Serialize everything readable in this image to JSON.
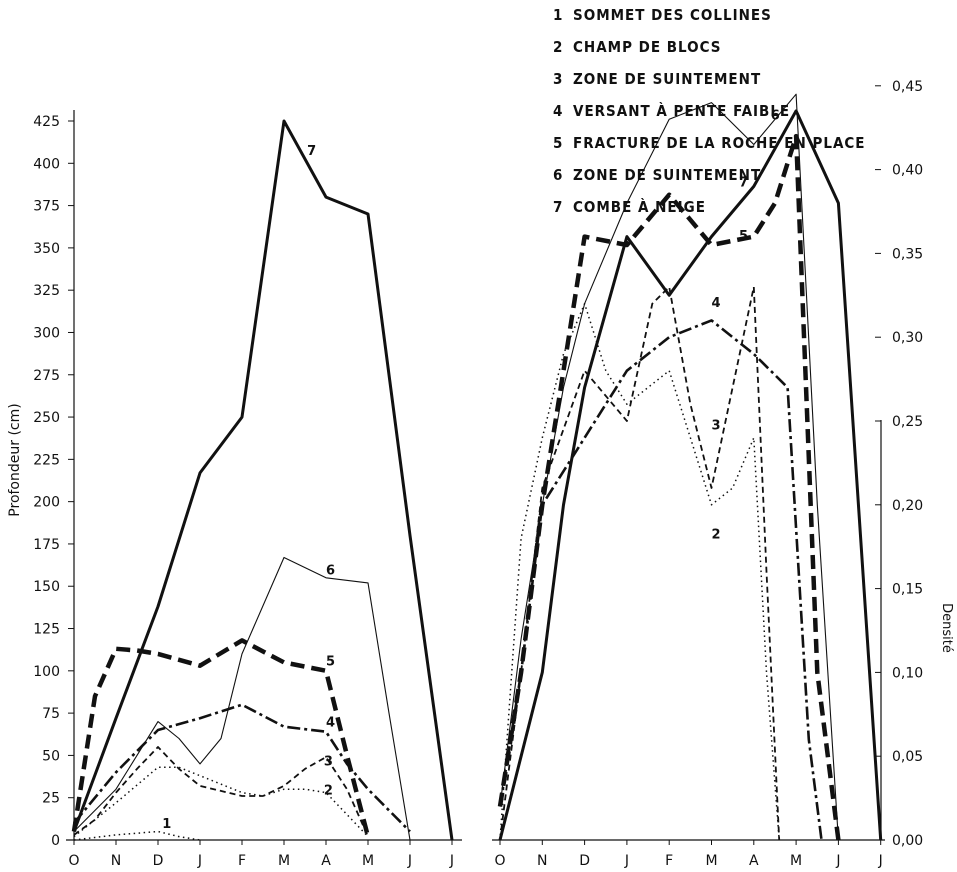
{
  "legend": [
    {
      "num": "1",
      "label": "SOMMET DES COLLINES"
    },
    {
      "num": "2",
      "label": "CHAMP DE BLOCS"
    },
    {
      "num": "3",
      "label": "ZONE DE SUINTEMENT"
    },
    {
      "num": "4",
      "label": "VERSANT À PENTE FAIBLE"
    },
    {
      "num": "5",
      "label": "FRACTURE DE LA ROCHE EN PLACE"
    },
    {
      "num": "6",
      "label": "ZONE DE SUINTEMENT"
    },
    {
      "num": "7",
      "label": "COMBE À NEIGE"
    }
  ],
  "chart_data": [
    {
      "type": "line",
      "ylabel": "Profondeur (cm)",
      "ylim": [
        0,
        425
      ],
      "yticks": [
        0,
        25,
        50,
        75,
        100,
        125,
        150,
        175,
        200,
        225,
        250,
        275,
        300,
        325,
        350,
        375,
        400,
        425
      ],
      "x_ticks": [
        "O",
        "N",
        "D",
        "J",
        "F",
        "M",
        "A",
        "M",
        "J",
        "J"
      ],
      "grid": false,
      "series": [
        {
          "name": "1",
          "style": "dotted",
          "points": [
            [
              0,
              0
            ],
            [
              1,
              3
            ],
            [
              2,
              5
            ],
            [
              2.5,
              2
            ],
            [
              3,
              0
            ]
          ]
        },
        {
          "name": "2",
          "style": "dotted",
          "points": [
            [
              0,
              2
            ],
            [
              1,
              22
            ],
            [
              2,
              43
            ],
            [
              2.5,
              43
            ],
            [
              3,
              38
            ],
            [
              4,
              28
            ],
            [
              4.5,
              26
            ],
            [
              5,
              30
            ],
            [
              5.5,
              30
            ],
            [
              6,
              28
            ],
            [
              6.5,
              15
            ],
            [
              7,
              2
            ]
          ]
        },
        {
          "name": "3",
          "style": "dashed",
          "points": [
            [
              0,
              3
            ],
            [
              0.5,
              12
            ],
            [
              1,
              28
            ],
            [
              1.5,
              42
            ],
            [
              2,
              55
            ],
            [
              2.5,
              42
            ],
            [
              3,
              32
            ],
            [
              4,
              26
            ],
            [
              4.5,
              26
            ],
            [
              5,
              32
            ],
            [
              5.5,
              42
            ],
            [
              6,
              49
            ],
            [
              6.5,
              30
            ],
            [
              7,
              2
            ]
          ]
        },
        {
          "name": "4",
          "style": "dashdot",
          "points": [
            [
              0,
              10
            ],
            [
              1,
              40
            ],
            [
              2,
              65
            ],
            [
              3,
              72
            ],
            [
              4,
              80
            ],
            [
              5,
              67
            ],
            [
              6,
              64
            ],
            [
              6.5,
              45
            ],
            [
              7,
              30
            ],
            [
              8,
              5
            ]
          ]
        },
        {
          "name": "5",
          "style": "heavy-dashed",
          "points": [
            [
              0,
              5
            ],
            [
              0.5,
              85
            ],
            [
              1,
              113
            ],
            [
              1.5,
              112
            ],
            [
              2,
              110
            ],
            [
              3,
              103
            ],
            [
              4,
              118
            ],
            [
              5,
              105
            ],
            [
              6,
              100
            ],
            [
              6.5,
              50
            ],
            [
              7,
              2
            ]
          ]
        },
        {
          "name": "6",
          "style": "thin",
          "points": [
            [
              0,
              5
            ],
            [
              1,
              30
            ],
            [
              2,
              70
            ],
            [
              2.5,
              60
            ],
            [
              3,
              45
            ],
            [
              3.5,
              60
            ],
            [
              4,
              110
            ],
            [
              5,
              167
            ],
            [
              6,
              155
            ],
            [
              7,
              152
            ],
            [
              7.5,
              75
            ],
            [
              8,
              0
            ]
          ]
        },
        {
          "name": "7",
          "style": "bold",
          "points": [
            [
              0,
              5
            ],
            [
              1,
              72
            ],
            [
              2,
              138
            ],
            [
              3,
              217
            ],
            [
              4,
              250
            ],
            [
              5,
              425
            ],
            [
              6,
              380
            ],
            [
              7,
              370
            ],
            [
              8,
              180
            ],
            [
              9,
              0
            ]
          ]
        }
      ],
      "series_labels": [
        {
          "text": "7",
          "x": 5.55,
          "y": 405
        },
        {
          "text": "6",
          "x": 6.0,
          "y": 157
        },
        {
          "text": "5",
          "x": 6.0,
          "y": 103
        },
        {
          "text": "4",
          "x": 6.0,
          "y": 67
        },
        {
          "text": "3",
          "x": 5.95,
          "y": 44
        },
        {
          "text": "2",
          "x": 5.95,
          "y": 27
        },
        {
          "text": "1",
          "x": 2.1,
          "y": 7
        }
      ]
    },
    {
      "type": "line",
      "ylabel": "Densité",
      "ylim": [
        0,
        0.5
      ],
      "yticks": [
        "0,00",
        "0,05",
        "0,10",
        "0,15",
        "0,20",
        "0,25",
        "0,30",
        "0,35",
        "0,40",
        "0,45"
      ],
      "x_ticks": [
        "O",
        "N",
        "D",
        "J",
        "F",
        "M",
        "A",
        "M",
        "J",
        "J"
      ],
      "grid": false,
      "series": [
        {
          "name": "2",
          "style": "dotted",
          "points": [
            [
              0,
              0
            ],
            [
              0.5,
              0.18
            ],
            [
              1,
              0.24
            ],
            [
              1.5,
              0.29
            ],
            [
              2,
              0.32
            ],
            [
              2.5,
              0.28
            ],
            [
              3,
              0.26
            ],
            [
              3.5,
              0.27
            ],
            [
              4,
              0.28
            ],
            [
              4.5,
              0.24
            ],
            [
              5,
              0.2
            ],
            [
              5.5,
              0.21
            ],
            [
              6,
              0.24
            ],
            [
              6.3,
              0.1
            ],
            [
              6.6,
              0
            ]
          ]
        },
        {
          "name": "3",
          "style": "dashed",
          "points": [
            [
              0,
              0
            ],
            [
              0.5,
              0.1
            ],
            [
              1,
              0.21
            ],
            [
              2,
              0.28
            ],
            [
              3,
              0.25
            ],
            [
              3.6,
              0.32
            ],
            [
              4.0,
              0.33
            ],
            [
              4.5,
              0.26
            ],
            [
              5,
              0.21
            ],
            [
              5.5,
              0.27
            ],
            [
              6,
              0.33
            ],
            [
              6.3,
              0.16
            ],
            [
              6.6,
              0
            ]
          ]
        },
        {
          "name": "4",
          "style": "dashdot",
          "points": [
            [
              0,
              0.02
            ],
            [
              0.5,
              0.1
            ],
            [
              1,
              0.2
            ],
            [
              2,
              0.24
            ],
            [
              3,
              0.28
            ],
            [
              4,
              0.3
            ],
            [
              5,
              0.31
            ],
            [
              6,
              0.29
            ],
            [
              6.8,
              0.27
            ],
            [
              7.3,
              0.06
            ],
            [
              7.6,
              0
            ]
          ]
        },
        {
          "name": "5",
          "style": "heavy-dashed",
          "points": [
            [
              0,
              0.02
            ],
            [
              0.5,
              0.1
            ],
            [
              1,
              0.2
            ],
            [
              1.5,
              0.28
            ],
            [
              2,
              0.36
            ],
            [
              3,
              0.355
            ],
            [
              4,
              0.385
            ],
            [
              5,
              0.355
            ],
            [
              6,
              0.36
            ],
            [
              6.5,
              0.38
            ],
            [
              7,
              0.42
            ],
            [
              7.5,
              0.1
            ],
            [
              8,
              0
            ]
          ]
        },
        {
          "name": "6",
          "style": "thin",
          "points": [
            [
              0,
              0.02
            ],
            [
              0.5,
              0.12
            ],
            [
              1,
              0.2
            ],
            [
              1.5,
              0.27
            ],
            [
              2,
              0.32
            ],
            [
              3,
              0.38
            ],
            [
              4,
              0.43
            ],
            [
              5,
              0.44
            ],
            [
              6,
              0.415
            ],
            [
              7,
              0.445
            ],
            [
              7.5,
              0.2
            ],
            [
              8,
              0
            ]
          ]
        },
        {
          "name": "7",
          "style": "bold",
          "points": [
            [
              0,
              0
            ],
            [
              0.5,
              0.05
            ],
            [
              1,
              0.1
            ],
            [
              1.5,
              0.2
            ],
            [
              2,
              0.27
            ],
            [
              3,
              0.36
            ],
            [
              4,
              0.325
            ],
            [
              5,
              0.36
            ],
            [
              6,
              0.39
            ],
            [
              7,
              0.435
            ],
            [
              8,
              0.38
            ],
            [
              9,
              0
            ]
          ]
        }
      ],
      "series_labels": [
        {
          "text": "6",
          "x": 6.4,
          "y": 0.43
        },
        {
          "text": "7",
          "x": 5.65,
          "y": 0.39
        },
        {
          "text": "5",
          "x": 5.65,
          "y": 0.358
        },
        {
          "text": "4",
          "x": 5.0,
          "y": 0.318
        },
        {
          "text": "3",
          "x": 5.0,
          "y": 0.245
        },
        {
          "text": "2",
          "x": 5.0,
          "y": 0.18
        }
      ]
    }
  ]
}
